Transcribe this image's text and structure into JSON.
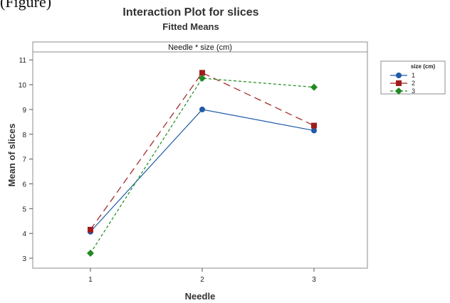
{
  "cropped_text": "(Figure)",
  "chart_data": {
    "type": "line",
    "title": "Interaction Plot for slices",
    "subtitle": "Fitted Means",
    "panel_label": "Needle * size (cm)",
    "xlabel": "Needle",
    "ylabel": "Mean of slices",
    "categories": [
      "1",
      "2",
      "3"
    ],
    "yticks": [
      3,
      4,
      5,
      6,
      7,
      8,
      9,
      10,
      11
    ],
    "ylim": [
      2.8,
      11.15
    ],
    "grid": false,
    "legend": {
      "title": "size (cm)",
      "placement": "right"
    },
    "series": [
      {
        "name": "1",
        "values": [
          4.07,
          9.0,
          8.15
        ],
        "color": "#1f5aa6",
        "marker": "circle",
        "dash": ""
      },
      {
        "name": "2",
        "values": [
          4.15,
          10.48,
          8.35
        ],
        "color": "#a01c1c",
        "marker": "square",
        "dash": "10,6"
      },
      {
        "name": "3",
        "values": [
          3.2,
          10.26,
          9.9
        ],
        "color": "#1f8a1f",
        "marker": "diamond",
        "dash": "4,3"
      }
    ]
  }
}
